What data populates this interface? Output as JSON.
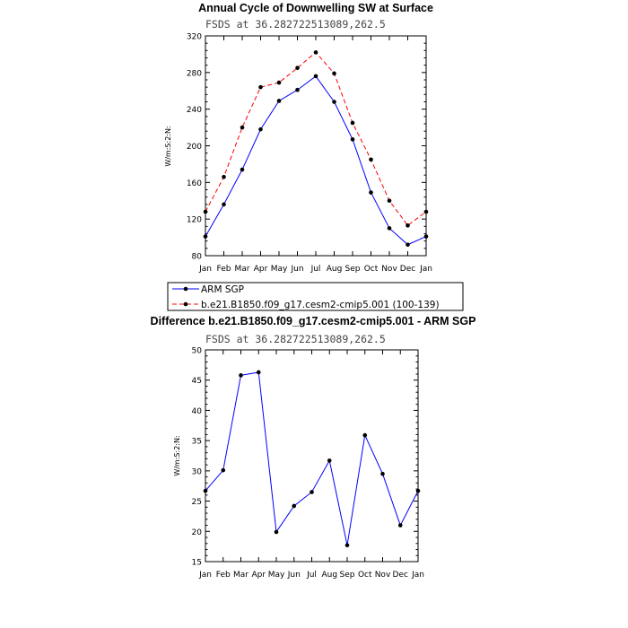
{
  "chart_data": [
    {
      "type": "line",
      "title": "Annual Cycle of Downwelling SW at Surface",
      "subtitle": "FSDS at 36.282722513089,262.5",
      "ylabel": "W/m:S:2:N:",
      "xlabel": "",
      "categories": [
        "Jan",
        "Feb",
        "Mar",
        "Apr",
        "May",
        "Jun",
        "Jul",
        "Aug",
        "Sep",
        "Oct",
        "Nov",
        "Dec",
        "Jan"
      ],
      "ylim": [
        80,
        320
      ],
      "yticks": [
        80,
        120,
        160,
        200,
        240,
        280,
        320
      ],
      "series": [
        {
          "name": "ARM SGP",
          "color": "#0000ff",
          "dash": "solid",
          "values": [
            101,
            136,
            174,
            218,
            249,
            261,
            276,
            248,
            207,
            149,
            110,
            92,
            101
          ]
        },
        {
          "name": "b.e21.B1850.f09_g17.cesm2-cmip5.001 (100-139)",
          "color": "#ff0000",
          "dash": "dashed",
          "values": [
            128,
            166,
            220,
            264,
            269,
            285,
            302,
            279,
            225,
            185,
            140,
            113,
            128
          ]
        }
      ],
      "legend": "below-plot"
    },
    {
      "type": "line",
      "title": "Difference b.e21.B1850.f09_g17.cesm2-cmip5.001 - ARM SGP",
      "subtitle": "FSDS at 36.282722513089,262.5",
      "ylabel": "W/m:S:2:N:",
      "xlabel": "",
      "categories": [
        "Jan",
        "Feb",
        "Mar",
        "Apr",
        "May",
        "Jun",
        "Jul",
        "Aug",
        "Sep",
        "Oct",
        "Nov",
        "Dec",
        "Jan"
      ],
      "ylim": [
        15,
        50
      ],
      "yticks": [
        15,
        20,
        25,
        30,
        35,
        40,
        45,
        50
      ],
      "series": [
        {
          "color": "#0000ff",
          "values": [
            26.7,
            30.1,
            45.8,
            46.3,
            19.9,
            24.2,
            26.5,
            31.7,
            17.7,
            35.9,
            29.5,
            21.0,
            26.7
          ]
        }
      ]
    }
  ]
}
